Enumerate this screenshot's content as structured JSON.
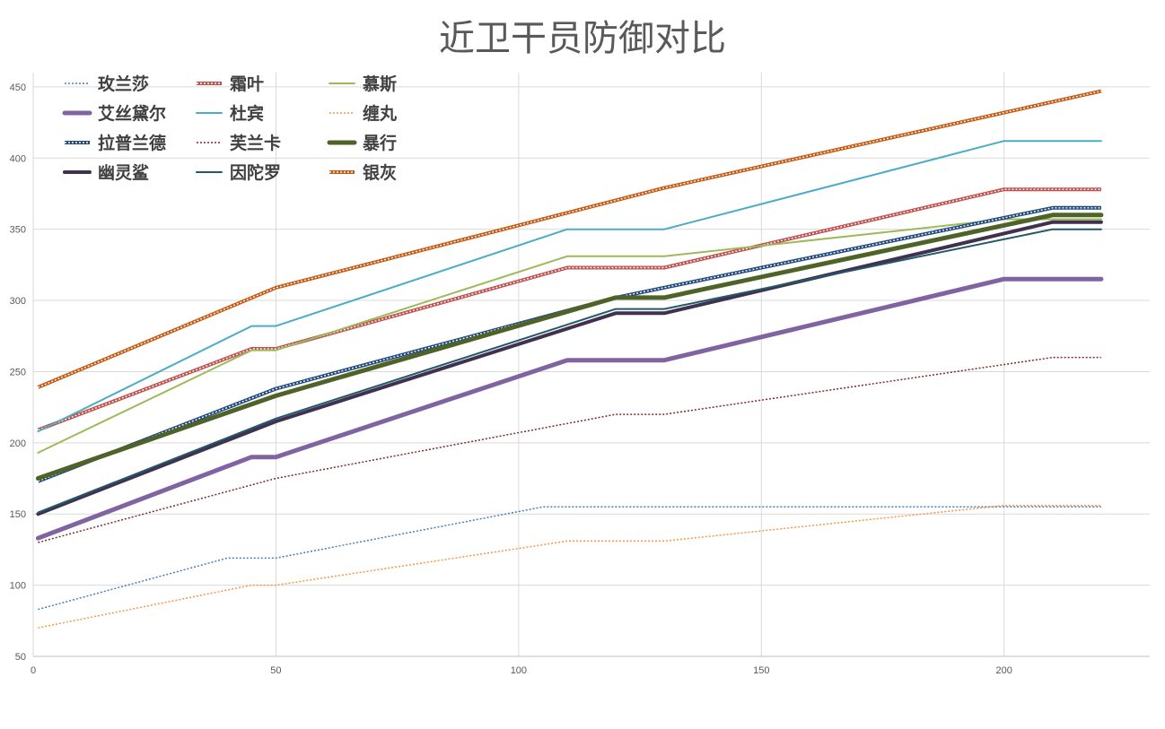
{
  "chart_data": {
    "type": "line",
    "title": "近卫干员防御对比",
    "xlabel": "",
    "ylabel": "",
    "xlim": [
      0,
      230
    ],
    "ylim": [
      50,
      460
    ],
    "x_ticks": [
      "0",
      "50",
      "100",
      "150",
      "200"
    ],
    "y_ticks": [
      "50",
      "100",
      "150",
      "200",
      "250",
      "300",
      "350",
      "400",
      "450"
    ],
    "grid": true,
    "legend_position": "top-left",
    "series": [
      {
        "name": "玫兰莎",
        "color": "#4a7fb5",
        "style": "dotted",
        "width": 1.5,
        "points": [
          [
            1,
            83
          ],
          [
            40,
            119
          ],
          [
            50,
            119
          ],
          [
            105,
            155
          ],
          [
            210,
            155
          ],
          [
            220,
            155
          ]
        ]
      },
      {
        "name": "霜叶",
        "color": "#c0504d",
        "style": "double",
        "width": 2,
        "points": [
          [
            1,
            209
          ],
          [
            45,
            266
          ],
          [
            50,
            266
          ],
          [
            110,
            323
          ],
          [
            130,
            323
          ],
          [
            200,
            378
          ],
          [
            220,
            378
          ]
        ]
      },
      {
        "name": "慕斯",
        "color": "#9bbb59",
        "style": "solid",
        "width": 2,
        "points": [
          [
            1,
            193
          ],
          [
            45,
            265
          ],
          [
            50,
            265
          ],
          [
            110,
            331
          ],
          [
            130,
            331
          ],
          [
            200,
            357
          ],
          [
            220,
            357
          ]
        ]
      },
      {
        "name": "艾丝黛尔",
        "color": "#8064a2",
        "style": "solid",
        "width": 5,
        "points": [
          [
            1,
            133
          ],
          [
            45,
            190
          ],
          [
            50,
            190
          ],
          [
            110,
            258
          ],
          [
            130,
            258
          ],
          [
            200,
            315
          ],
          [
            220,
            315
          ]
        ]
      },
      {
        "name": "杜宾",
        "color": "#4bacc6",
        "style": "solid",
        "width": 2,
        "points": [
          [
            1,
            208
          ],
          [
            45,
            282
          ],
          [
            50,
            282
          ],
          [
            110,
            350
          ],
          [
            130,
            350
          ],
          [
            200,
            412
          ],
          [
            220,
            412
          ]
        ]
      },
      {
        "name": "缠丸",
        "color": "#f79646",
        "style": "dotted",
        "width": 1.5,
        "points": [
          [
            1,
            70
          ],
          [
            45,
            100
          ],
          [
            50,
            100
          ],
          [
            110,
            131
          ],
          [
            130,
            131
          ],
          [
            200,
            156
          ],
          [
            220,
            156
          ]
        ]
      },
      {
        "name": "拉普兰德",
        "color": "#1f497d",
        "style": "double",
        "width": 2,
        "points": [
          [
            1,
            173
          ],
          [
            50,
            238
          ],
          [
            120,
            302
          ],
          [
            210,
            365
          ],
          [
            220,
            365
          ]
        ]
      },
      {
        "name": "芙兰卡",
        "color": "#7b2c2c",
        "style": "dotted",
        "width": 1.5,
        "points": [
          [
            1,
            130
          ],
          [
            50,
            175
          ],
          [
            120,
            220
          ],
          [
            130,
            220
          ],
          [
            210,
            260
          ],
          [
            220,
            260
          ]
        ]
      },
      {
        "name": "暴行",
        "color": "#4f6228",
        "style": "solid",
        "width": 5,
        "points": [
          [
            1,
            175
          ],
          [
            50,
            233
          ],
          [
            120,
            302
          ],
          [
            130,
            302
          ],
          [
            210,
            360
          ],
          [
            220,
            360
          ]
        ]
      },
      {
        "name": "幽灵鲨",
        "color": "#403151",
        "style": "solid",
        "width": 4,
        "points": [
          [
            1,
            150
          ],
          [
            50,
            215
          ],
          [
            120,
            291
          ],
          [
            130,
            291
          ],
          [
            210,
            355
          ],
          [
            220,
            355
          ]
        ]
      },
      {
        "name": "因陀罗",
        "color": "#215968",
        "style": "solid",
        "width": 2,
        "points": [
          [
            1,
            151
          ],
          [
            50,
            217
          ],
          [
            120,
            294
          ],
          [
            130,
            294
          ],
          [
            210,
            350
          ],
          [
            220,
            350
          ]
        ]
      },
      {
        "name": "银灰",
        "color": "#c65911",
        "style": "double",
        "width": 2,
        "points": [
          [
            1,
            239
          ],
          [
            50,
            309
          ],
          [
            130,
            379
          ],
          [
            220,
            447
          ]
        ]
      }
    ]
  }
}
